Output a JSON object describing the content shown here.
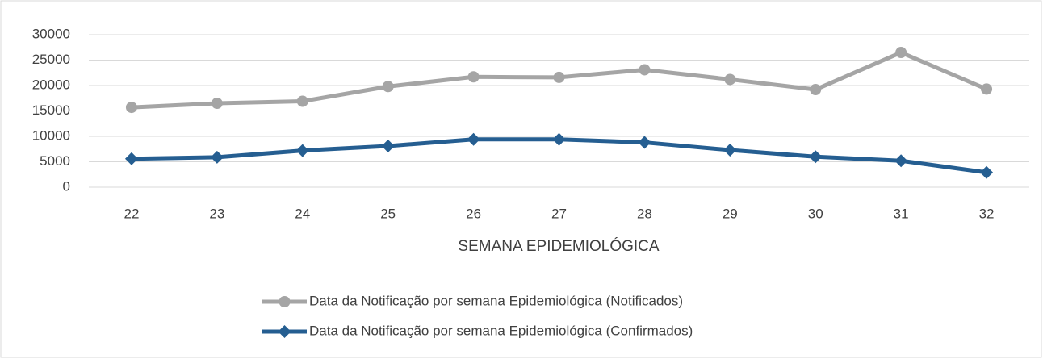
{
  "chart_data": {
    "type": "line",
    "x_label": "SEMANA EPIDEMIOLÓGICA",
    "categories": [
      "22",
      "23",
      "24",
      "25",
      "26",
      "27",
      "28",
      "29",
      "30",
      "31",
      "32"
    ],
    "series": [
      {
        "name": "Data da Notificação por semana Epidemiológica (Notificados)",
        "color": "#a5a5a5",
        "marker": "circle",
        "values": [
          15700,
          16500,
          16900,
          19800,
          21700,
          21600,
          23100,
          21200,
          19200,
          26500,
          19300
        ]
      },
      {
        "name": "Data da Notificação por semana Epidemiológica (Confirmados)",
        "color": "#255e91",
        "marker": "diamond",
        "values": [
          5600,
          5900,
          7200,
          8100,
          9400,
          9400,
          8800,
          7300,
          6000,
          5200,
          2900
        ]
      }
    ],
    "ylim": [
      0,
      30000
    ],
    "yticks": [
      0,
      5000,
      10000,
      15000,
      20000,
      25000,
      30000
    ],
    "grid": true,
    "legend": "bottom"
  }
}
